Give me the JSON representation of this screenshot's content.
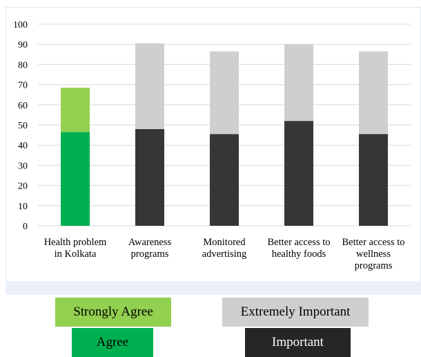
{
  "chart_data": {
    "type": "bar",
    "stacked": true,
    "categories": [
      [
        "Health problem",
        "in Kolkata"
      ],
      [
        "Awareness",
        "programs"
      ],
      [
        "Monitored",
        "advertising"
      ],
      [
        "Better access to",
        "healthy foods"
      ],
      [
        "Better access to",
        "wellness",
        "programs"
      ]
    ],
    "series": [
      {
        "name": "Agree",
        "values": [
          46.5,
          null,
          null,
          null,
          null
        ],
        "color": "#00b050"
      },
      {
        "name": "Strongly Agree",
        "values": [
          22,
          null,
          null,
          null,
          null
        ],
        "color": "#92d050"
      },
      {
        "name": "Important",
        "values": [
          null,
          48,
          45.5,
          52,
          45.5
        ],
        "color": "#363636"
      },
      {
        "name": "Extremely Important",
        "values": [
          null,
          42.5,
          41,
          38,
          41
        ],
        "color": "#d0cece"
      }
    ],
    "ylim": [
      0,
      100
    ],
    "yticks": [
      "0",
      "10",
      "20",
      "30",
      "40",
      "50",
      "60",
      "70",
      "80",
      "90",
      "100"
    ],
    "grid": true,
    "legend": {
      "placement": "bottom",
      "items": [
        {
          "label": "Strongly Agree",
          "bg": "#92d050",
          "fg": "#000000"
        },
        {
          "label": "Extremely Important",
          "bg": "#d0cece",
          "fg": "#000000"
        },
        {
          "label": "Agree",
          "bg": "#00b050",
          "fg": "#000000"
        },
        {
          "label": "Important",
          "bg": "#262626",
          "fg": "#ffffff"
        }
      ]
    }
  }
}
